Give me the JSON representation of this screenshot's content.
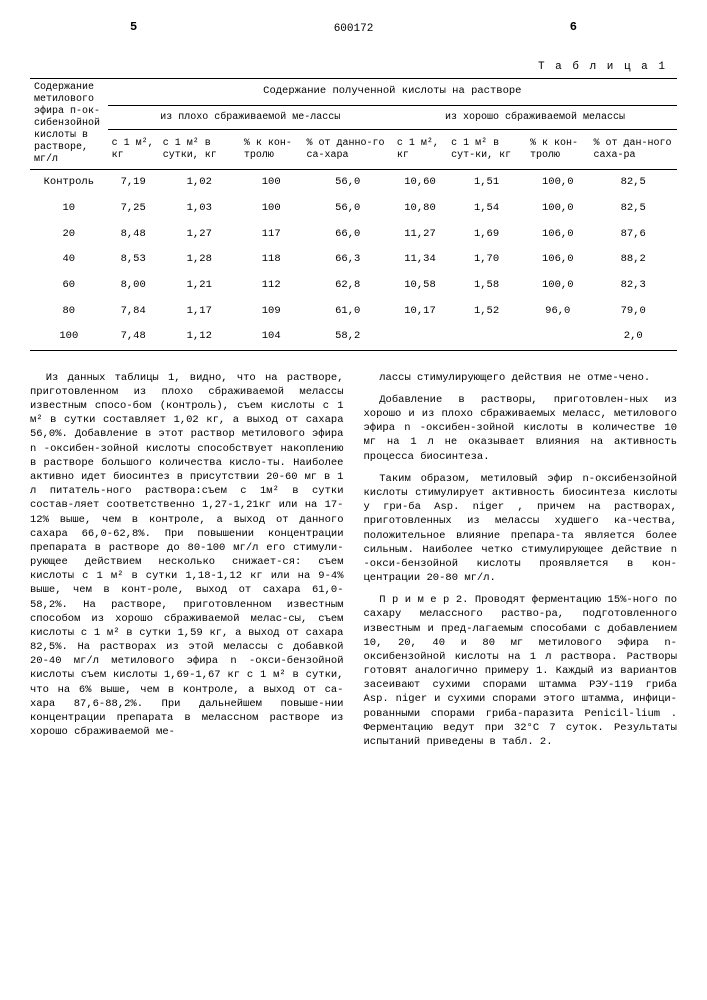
{
  "header": {
    "left_page": "5",
    "doc_number": "600172",
    "right_page": "6"
  },
  "table": {
    "label": "Т а б л и ц а 1",
    "col_header_main": "Содержание метилового эфира п-ок-сибензойной кислоты в растворе, мг/л",
    "group_header": "Содержание полученной кислоты на растворе",
    "sub_header_a": "из плохо сбраживаемой ме-лассы",
    "sub_header_b": "из хорошо сбраживаемой мелассы",
    "col_a1": "с 1 м², кг",
    "col_a2": "с 1 м² в сутки, кг",
    "col_a3": "% к кон-тролю",
    "col_a4": "% от данно-го са-хара",
    "col_b1": "с 1 м², кг",
    "col_b2": "с 1 м² в сут-ки, кг",
    "col_b3": "% к кон-тролю",
    "col_b4": "% от дан-ного саха-ра",
    "rows": [
      {
        "c0": "Контроль",
        "a1": "7,19",
        "a2": "1,02",
        "a3": "100",
        "a4": "56,0",
        "b1": "10,60",
        "b2": "1,51",
        "b3": "100,0",
        "b4": "82,5"
      },
      {
        "c0": "10",
        "a1": "7,25",
        "a2": "1,03",
        "a3": "100",
        "a4": "56,0",
        "b1": "10,80",
        "b2": "1,54",
        "b3": "100,0",
        "b4": "82,5"
      },
      {
        "c0": "20",
        "a1": "8,48",
        "a2": "1,27",
        "a3": "117",
        "a4": "66,0",
        "b1": "11,27",
        "b2": "1,69",
        "b3": "106,0",
        "b4": "87,6"
      },
      {
        "c0": "40",
        "a1": "8,53",
        "a2": "1,28",
        "a3": "118",
        "a4": "66,3",
        "b1": "11,34",
        "b2": "1,70",
        "b3": "106,0",
        "b4": "88,2"
      },
      {
        "c0": "60",
        "a1": "8,00",
        "a2": "1,21",
        "a3": "112",
        "a4": "62,8",
        "b1": "10,58",
        "b2": "1,58",
        "b3": "100,0",
        "b4": "82,3"
      },
      {
        "c0": "80",
        "a1": "7,84",
        "a2": "1,17",
        "a3": "109",
        "a4": "61,0",
        "b1": "10,17",
        "b2": "1,52",
        "b3": "96,0",
        "b4": "79,0"
      },
      {
        "c0": "100",
        "a1": "7,48",
        "a2": "1,12",
        "a3": "104",
        "a4": "58,2",
        "b1": "",
        "b2": "",
        "b3": "",
        "b4": "2,0"
      }
    ]
  },
  "body": {
    "left_col": "Из данных таблицы 1, видно, что на растворе, приготовленном из плохо сбраживаемой мелассы известным спосо-бом (контроль), съем кислоты с 1 м² в сутки составляет 1,02 кг, а выход от сахара 56,0%. Добавление в этот раствор метилового эфира n -оксибен-зойной кислоты способствует накоплению в растворе большого количества кисло-ты. Наиболее активно идет биосинтез в присутствии 20-60 мг в 1 л питатель-ного раствора:съем с 1м² в сутки состав-ляет соответственно 1,27-1,21кг или на 17-12% выше, чем в контроле, а выход от данного сахара 66,0-62,8%. При повышении концентрации препарата в растворе до 80-100 мг/л его стимули-рующее действием несколько снижает-ся: съем кислоты с 1 м² в сутки 1,18-1,12 кг или на 9-4% выше, чем в конт-роле, выход от сахара 61,0-58,2%. На растворе, приготовленном известным способом из хорошо сбраживаемой мелас-сы, съем кислоты с 1 м² в сутки 1,59 кг, а выход от сахара 82,5%. На растворах из этой мелассы с добавкой 20-40 мг/л метилового эфира n -окси-бензойной кислоты съем кислоты 1,69-1,67 кг с 1 м² в сутки, что на 6% выше, чем в контроле, а выход от са-хара 87,6-88,2%. При дальнейшем повыше-нии концентрации препарата в мелассном растворе из хорошо сбраживаемой ме-",
    "right_col_p1": "лассы стимулирующего действия не отме-чено.",
    "right_col_p2": "Добавление в растворы, приготовлен-ных из хорошо и из плохо сбраживаемых меласс, метилового эфира n -оксибен-зойной кислоты в количестве 10 мг на 1 л не оказывает влияния на активность процесса биосинтеза.",
    "right_col_p3": "Таким образом, метиловый эфир n-оксибензойной кислоты стимулирует активность биосинтеза кислоты у гри-ба Asp. niger , причем на растворах, приготовленных из мелассы худшего ка-чества, положительное влияние препара-та является более сильным. Наиболее четко стимулирующее действие n -окси-бензойной кислоты проявляется в кон-центрации 20-80 мг/л.",
    "right_col_p4": "П р и м е р 2. Проводят ферментацию 15%-ного по сахару мелассного раство-ра, подготовленного известным и пред-лагаемым способами с добавлением 10, 20, 40 и 80 мг метилового эфира n-оксибензойной кислоты на 1 л раствора. Растворы готовят аналогично примеру 1. Каждый из вариантов засеивают сухими спорами штамма РЭУ-119 гриба Asp. niger и сухими спорами этого штамма, инфици-рованными спорами гриба-паразита Penicil-lium . Ферментацию ведут при 32°С 7 суток. Результаты испытаний приведены в табл. 2."
  }
}
